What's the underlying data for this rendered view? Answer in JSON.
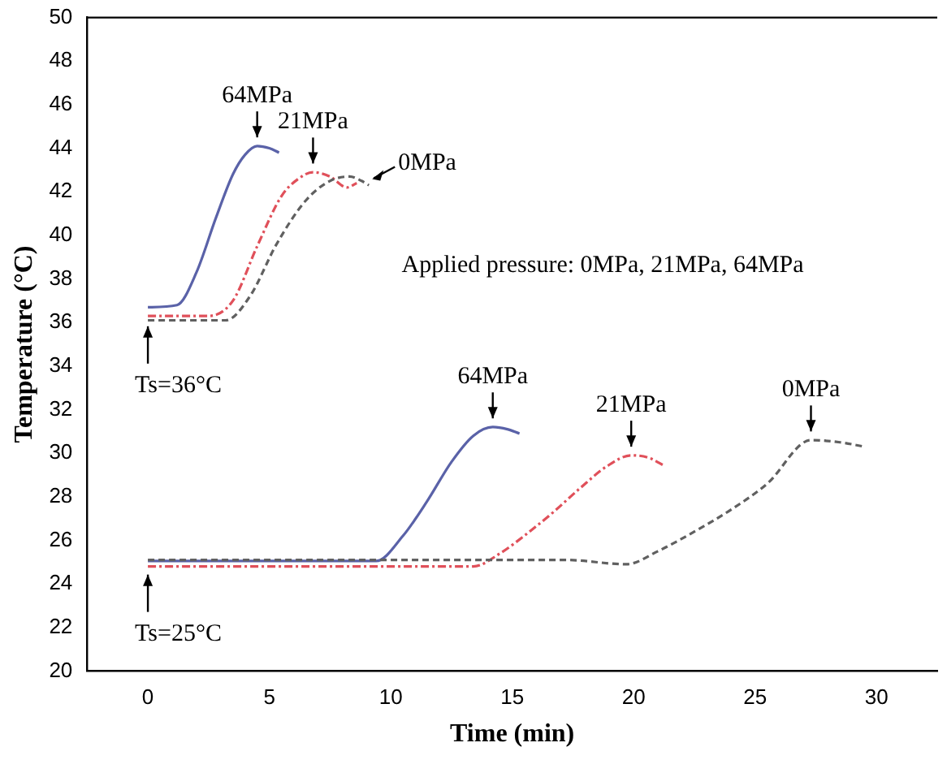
{
  "chart_data": {
    "type": "line",
    "xlabel": "Time (min)",
    "ylabel": "Temperature (°C)",
    "xlim": [
      -2.5,
      32.5
    ],
    "xticks": [
      0,
      5,
      10,
      15,
      20,
      25,
      30
    ],
    "ylim": [
      20,
      50
    ],
    "yticks": [
      20,
      22,
      24,
      26,
      28,
      30,
      32,
      34,
      36,
      38,
      40,
      42,
      44,
      46,
      48,
      50
    ],
    "grid": false,
    "legend": false,
    "marker": "none",
    "series": [
      {
        "color": "#5a62a8",
        "line_style": "solid",
        "x": [
          0,
          1.2,
          2,
          2.8,
          3.5,
          4,
          4.5,
          5,
          5.4
        ],
        "values": [
          36.7,
          36.8,
          38.3,
          40.8,
          42.8,
          43.7,
          44.1,
          44.0,
          43.8
        ]
      },
      {
        "color": "#e0505a",
        "line_style": "dotted",
        "x": [
          0,
          2.5,
          3.5,
          4.5,
          5.5,
          6.2,
          6.8,
          7.5,
          8.2,
          8.6
        ],
        "values": [
          36.3,
          36.3,
          37.0,
          39.5,
          41.8,
          42.6,
          42.9,
          42.7,
          42.2,
          42.4
        ]
      },
      {
        "color": "#606060",
        "line_style": "dashed",
        "x": [
          0,
          3.2,
          4.2,
          5.3,
          6.5,
          7.5,
          8.3,
          8.8,
          9.1
        ],
        "values": [
          36.1,
          36.1,
          37.2,
          39.6,
          41.6,
          42.5,
          42.7,
          42.5,
          42.3
        ]
      },
      {
        "color": "#5a62a8",
        "line_style": "solid",
        "x": [
          0,
          9.4,
          10.5,
          11.5,
          12.5,
          13.4,
          14.2,
          14.8,
          15.3
        ],
        "values": [
          25.05,
          25.05,
          26.2,
          27.8,
          29.6,
          30.8,
          31.2,
          31.1,
          30.9
        ]
      },
      {
        "color": "#e0505a",
        "line_style": "dotted",
        "x": [
          0,
          13.4,
          14.5,
          15.6,
          16.7,
          17.8,
          18.9,
          19.9,
          20.6,
          21.3
        ],
        "values": [
          24.8,
          24.8,
          25.4,
          26.3,
          27.3,
          28.4,
          29.4,
          29.9,
          29.8,
          29.4
        ]
      },
      {
        "color": "#606060",
        "line_style": "dashed",
        "x": [
          0,
          17.2,
          19.7,
          21,
          22.5,
          24,
          25.5,
          27.3,
          28.5,
          29.5
        ],
        "values": [
          25.1,
          25.1,
          24.9,
          25.5,
          26.4,
          27.4,
          28.6,
          30.6,
          30.5,
          30.3
        ]
      }
    ],
    "annotations": [
      {
        "text": "64MPa",
        "x": 4.5,
        "y": 44.2
      },
      {
        "text": "21MPa",
        "x": 6.8,
        "y": 43.0
      },
      {
        "text": "0MPa",
        "x": 9.1,
        "y": 42.4
      },
      {
        "text": "Ts=36°C",
        "x": 0,
        "y": 36.2
      },
      "Applied pressure: 0MPa, 21MPa, 64MPa",
      {
        "text": "64MPa",
        "x": 14.2,
        "y": 31.3
      },
      {
        "text": "21MPa",
        "x": 19.9,
        "y": 30.0
      },
      {
        "text": "0MPa",
        "x": 27.3,
        "y": 30.7
      },
      {
        "text": "Ts=25°C",
        "x": 0,
        "y": 24.8
      }
    ]
  }
}
